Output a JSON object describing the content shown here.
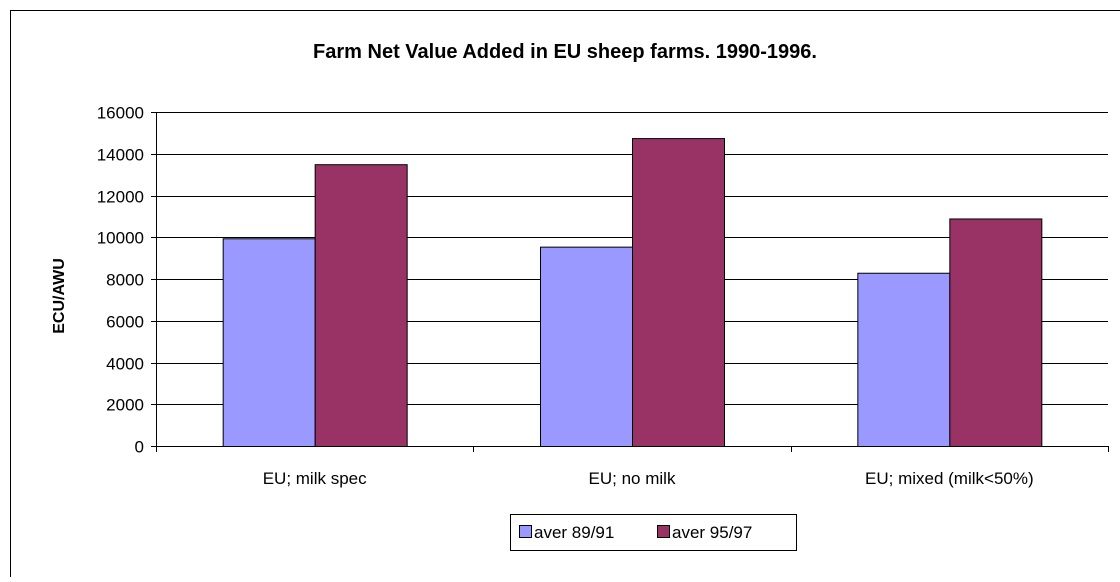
{
  "chart_data": {
    "type": "bar",
    "title": "Farm Net Value Added in EU sheep farms. 1990-1996.",
    "xlabel": "",
    "ylabel": "ECU/AWU",
    "categories": [
      "EU; milk spec",
      "EU; no milk",
      "EU; mixed (milk<50%)"
    ],
    "series": [
      {
        "name": "aver 89/91",
        "values": [
          9950,
          9550,
          8300
        ],
        "color": "#9999FF"
      },
      {
        "name": "aver 95/97",
        "values": [
          13500,
          14750,
          10900
        ],
        "color": "#993366"
      }
    ],
    "ylim": [
      0,
      16000
    ],
    "yticks": [
      0,
      2000,
      4000,
      6000,
      8000,
      10000,
      12000,
      14000,
      16000
    ],
    "grid": true,
    "legend": "bottom"
  }
}
